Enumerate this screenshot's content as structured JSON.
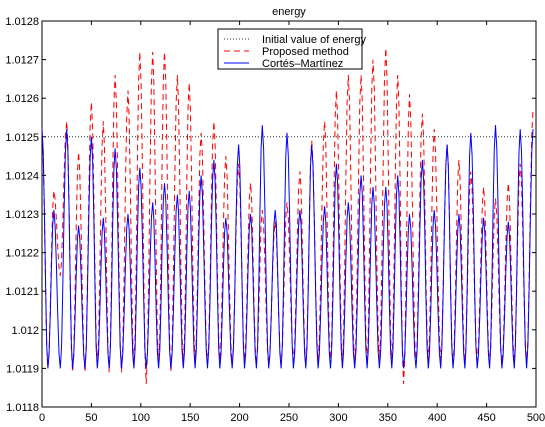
{
  "chart_data": {
    "type": "line",
    "title": "energy",
    "xlabel": "",
    "ylabel": "",
    "xlim": [
      0,
      500
    ],
    "ylim": [
      1.0118,
      1.0128
    ],
    "x_ticks": [
      0,
      50,
      100,
      150,
      200,
      250,
      300,
      350,
      400,
      450,
      500
    ],
    "x_tick_labels": [
      "0",
      "50",
      "100",
      "150",
      "200",
      "250",
      "300",
      "350",
      "400",
      "450",
      "500"
    ],
    "y_ticks": [
      1.0118,
      1.0119,
      1.012,
      1.0121,
      1.0122,
      1.0123,
      1.0124,
      1.0125,
      1.0126,
      1.0127,
      1.0128
    ],
    "y_tick_labels": [
      "1.0118",
      "1.0119",
      "1.012",
      "1.0121",
      "1.0122",
      "1.0123",
      "1.0124",
      "1.0125",
      "1.0126",
      "1.0127",
      "1.0128"
    ],
    "grid": false,
    "legend_position": "top-center",
    "series": [
      {
        "name": "Initial value of energy",
        "style": "dotted",
        "color": "#333333",
        "x": [
          0,
          500
        ],
        "y": [
          1.0125,
          1.0125
        ]
      },
      {
        "name": "Proposed method",
        "style": "dashed",
        "color": "#ff0000",
        "peak_x": [
          0,
          12,
          25,
          37,
          50,
          62,
          74,
          87,
          99,
          112,
          124,
          137,
          149,
          161,
          174,
          186,
          199,
          211,
          223,
          236,
          248,
          261,
          273,
          286,
          298,
          310,
          323,
          335,
          348,
          360,
          372,
          385,
          397,
          410,
          422,
          434,
          447,
          459,
          472,
          484,
          497
        ],
        "peak_y": [
          1.01252,
          1.01236,
          1.01254,
          1.01246,
          1.01259,
          1.01254,
          1.01266,
          1.01262,
          1.01272,
          1.01272,
          1.01272,
          1.01266,
          1.01264,
          1.01251,
          1.01254,
          1.01245,
          1.01243,
          1.01238,
          1.01231,
          1.01228,
          1.01233,
          1.01241,
          1.01249,
          1.01254,
          1.01262,
          1.01266,
          1.01266,
          1.0127,
          1.01273,
          1.01266,
          1.01261,
          1.01256,
          1.01252,
          1.01248,
          1.01244,
          1.01241,
          1.01237,
          1.01234,
          1.01238,
          1.01243,
          1.01257
        ],
        "trough_y": [
          1.0119,
          1.01214,
          1.01189,
          1.01189,
          1.01191,
          1.01189,
          1.01189,
          1.01191,
          1.01186,
          1.01191,
          1.01189,
          1.01191,
          1.01192,
          1.01191,
          1.01192,
          1.01191,
          1.01192,
          1.01191,
          1.01191,
          1.01191,
          1.01192,
          1.01191,
          1.01192,
          1.01191,
          1.01191,
          1.01191,
          1.01191,
          1.01192,
          1.01191,
          1.01186,
          1.01191,
          1.01192,
          1.01192,
          1.01191,
          1.01191,
          1.01192,
          1.01191,
          1.01191,
          1.01192,
          1.01191
        ]
      },
      {
        "name": "Cortés–Martínez",
        "style": "solid",
        "color": "#0000ff",
        "peak_x": [
          0,
          12,
          25,
          37,
          50,
          62,
          74,
          87,
          99,
          112,
          124,
          137,
          149,
          161,
          174,
          186,
          199,
          211,
          223,
          236,
          248,
          261,
          273,
          286,
          298,
          310,
          323,
          335,
          348,
          360,
          372,
          385,
          397,
          410,
          422,
          434,
          447,
          459,
          472,
          484,
          497
        ],
        "peak_y": [
          1.01252,
          1.01231,
          1.01252,
          1.01227,
          1.0125,
          1.01229,
          1.01247,
          1.0123,
          1.01242,
          1.01233,
          1.01238,
          1.01235,
          1.01236,
          1.0124,
          1.01244,
          1.01229,
          1.01248,
          1.0123,
          1.01253,
          1.01231,
          1.01251,
          1.01231,
          1.01248,
          1.01232,
          1.01243,
          1.01233,
          1.0124,
          1.01237,
          1.01237,
          1.0124,
          1.0123,
          1.01244,
          1.01231,
          1.01248,
          1.0123,
          1.01251,
          1.01229,
          1.01253,
          1.01228,
          1.01252,
          1.01252
        ],
        "trough_y": [
          1.0119,
          1.0119,
          1.0119,
          1.0119,
          1.0119,
          1.0119,
          1.0119,
          1.0119,
          1.0119,
          1.0119,
          1.0119,
          1.0119,
          1.0119,
          1.0119,
          1.0119,
          1.0119,
          1.0119,
          1.0119,
          1.0119,
          1.0119,
          1.0119,
          1.0119,
          1.0119,
          1.0119,
          1.0119,
          1.0119,
          1.0119,
          1.0119,
          1.0119,
          1.0119,
          1.0119,
          1.0119,
          1.0119,
          1.0119,
          1.0119,
          1.0119,
          1.0119,
          1.0119,
          1.0119,
          1.0119
        ]
      }
    ]
  }
}
